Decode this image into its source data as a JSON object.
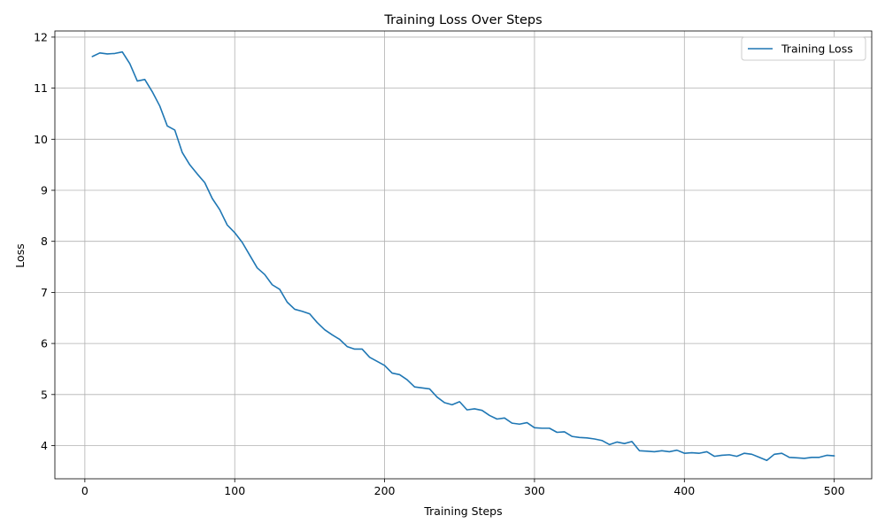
{
  "chart_data": {
    "type": "line",
    "title": "Training Loss Over Steps",
    "xlabel": "Training Steps",
    "ylabel": "Loss",
    "xlim": [
      -20,
      525
    ],
    "ylim": [
      3.35,
      12.12
    ],
    "x_ticks": [
      0,
      100,
      200,
      300,
      400,
      500
    ],
    "y_ticks": [
      4,
      5,
      6,
      7,
      8,
      9,
      10,
      11,
      12
    ],
    "grid": true,
    "legend_position": "top-right",
    "line_color": "#1f77b4",
    "series": [
      {
        "name": "Training Loss",
        "x": [
          5,
          10,
          15,
          20,
          25,
          30,
          35,
          40,
          45,
          50,
          55,
          60,
          65,
          70,
          75,
          80,
          85,
          90,
          95,
          100,
          105,
          110,
          115,
          120,
          125,
          130,
          135,
          140,
          145,
          150,
          155,
          160,
          165,
          170,
          175,
          180,
          185,
          190,
          195,
          200,
          205,
          210,
          215,
          220,
          225,
          230,
          235,
          240,
          245,
          250,
          255,
          260,
          265,
          270,
          275,
          280,
          285,
          290,
          295,
          300,
          305,
          310,
          315,
          320,
          325,
          330,
          335,
          340,
          345,
          350,
          355,
          360,
          365,
          370,
          375,
          380,
          385,
          390,
          395,
          400,
          405,
          410,
          415,
          420,
          425,
          430,
          435,
          440,
          445,
          450,
          455,
          460,
          465,
          470,
          475,
          480,
          485,
          490,
          495,
          500
        ],
        "y": [
          11.62,
          11.69,
          11.67,
          11.68,
          11.71,
          11.48,
          11.14,
          11.17,
          10.93,
          10.65,
          10.26,
          10.18,
          9.74,
          9.5,
          9.32,
          9.15,
          8.84,
          8.62,
          8.32,
          8.17,
          7.98,
          7.73,
          7.48,
          7.35,
          7.15,
          7.06,
          6.81,
          6.67,
          6.63,
          6.58,
          6.41,
          6.27,
          6.17,
          6.08,
          5.94,
          5.89,
          5.89,
          5.73,
          5.65,
          5.57,
          5.42,
          5.39,
          5.29,
          5.15,
          5.13,
          5.11,
          4.95,
          4.84,
          4.8,
          4.86,
          4.7,
          4.72,
          4.69,
          4.59,
          4.52,
          4.54,
          4.44,
          4.42,
          4.45,
          4.35,
          4.34,
          4.34,
          4.26,
          4.27,
          4.18,
          4.16,
          4.15,
          4.13,
          4.1,
          4.02,
          4.07,
          4.04,
          4.08,
          3.9,
          3.89,
          3.88,
          3.9,
          3.88,
          3.91,
          3.85,
          3.86,
          3.85,
          3.88,
          3.79,
          3.81,
          3.82,
          3.79,
          3.85,
          3.83,
          3.77,
          3.71,
          3.83,
          3.85,
          3.77,
          3.76,
          3.75,
          3.77,
          3.77,
          3.81,
          3.8
        ]
      }
    ]
  }
}
